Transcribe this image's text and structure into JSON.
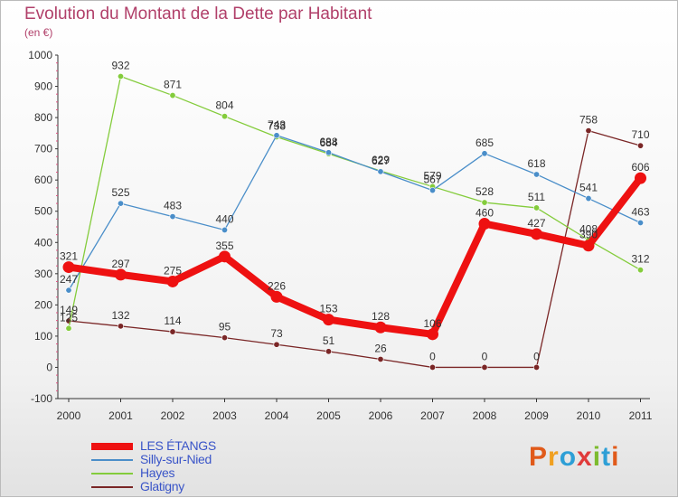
{
  "chart_data": {
    "type": "line",
    "title": "Evolution du Montant de la Dette par Habitant",
    "subtitle": "(en €)",
    "x": [
      "2000",
      "2001",
      "2002",
      "2003",
      "2004",
      "2005",
      "2006",
      "2007",
      "2008",
      "2009",
      "2010",
      "2011"
    ],
    "ylim": [
      -100,
      1000
    ],
    "yticks": [
      -100,
      0,
      100,
      200,
      300,
      400,
      500,
      600,
      700,
      800,
      900,
      1000
    ],
    "grid": false,
    "legend_position": "bottom-left",
    "series": [
      {
        "name": "LES ÉTANGS",
        "color": "#ee1111",
        "values": [
          321,
          297,
          275,
          355,
          226,
          153,
          128,
          106,
          460,
          427,
          390,
          606
        ]
      },
      {
        "name": "Silly-sur-Nied",
        "color": "#4a8ec9",
        "values": [
          247,
          525,
          483,
          440,
          743,
          688,
          627,
          567,
          685,
          618,
          541,
          463
        ]
      },
      {
        "name": "Hayes",
        "color": "#84cc3c",
        "values": [
          125,
          932,
          871,
          804,
          738,
          684,
          629,
          579,
          528,
          511,
          408,
          312
        ]
      },
      {
        "name": "Glatigny",
        "color": "#7a2626",
        "values": [
          149,
          132,
          114,
          95,
          73,
          51,
          26,
          0,
          0,
          0,
          758,
          710
        ]
      }
    ]
  },
  "logo": {
    "letters": [
      "P",
      "r",
      "o",
      "x",
      "i",
      "t",
      "i"
    ]
  }
}
